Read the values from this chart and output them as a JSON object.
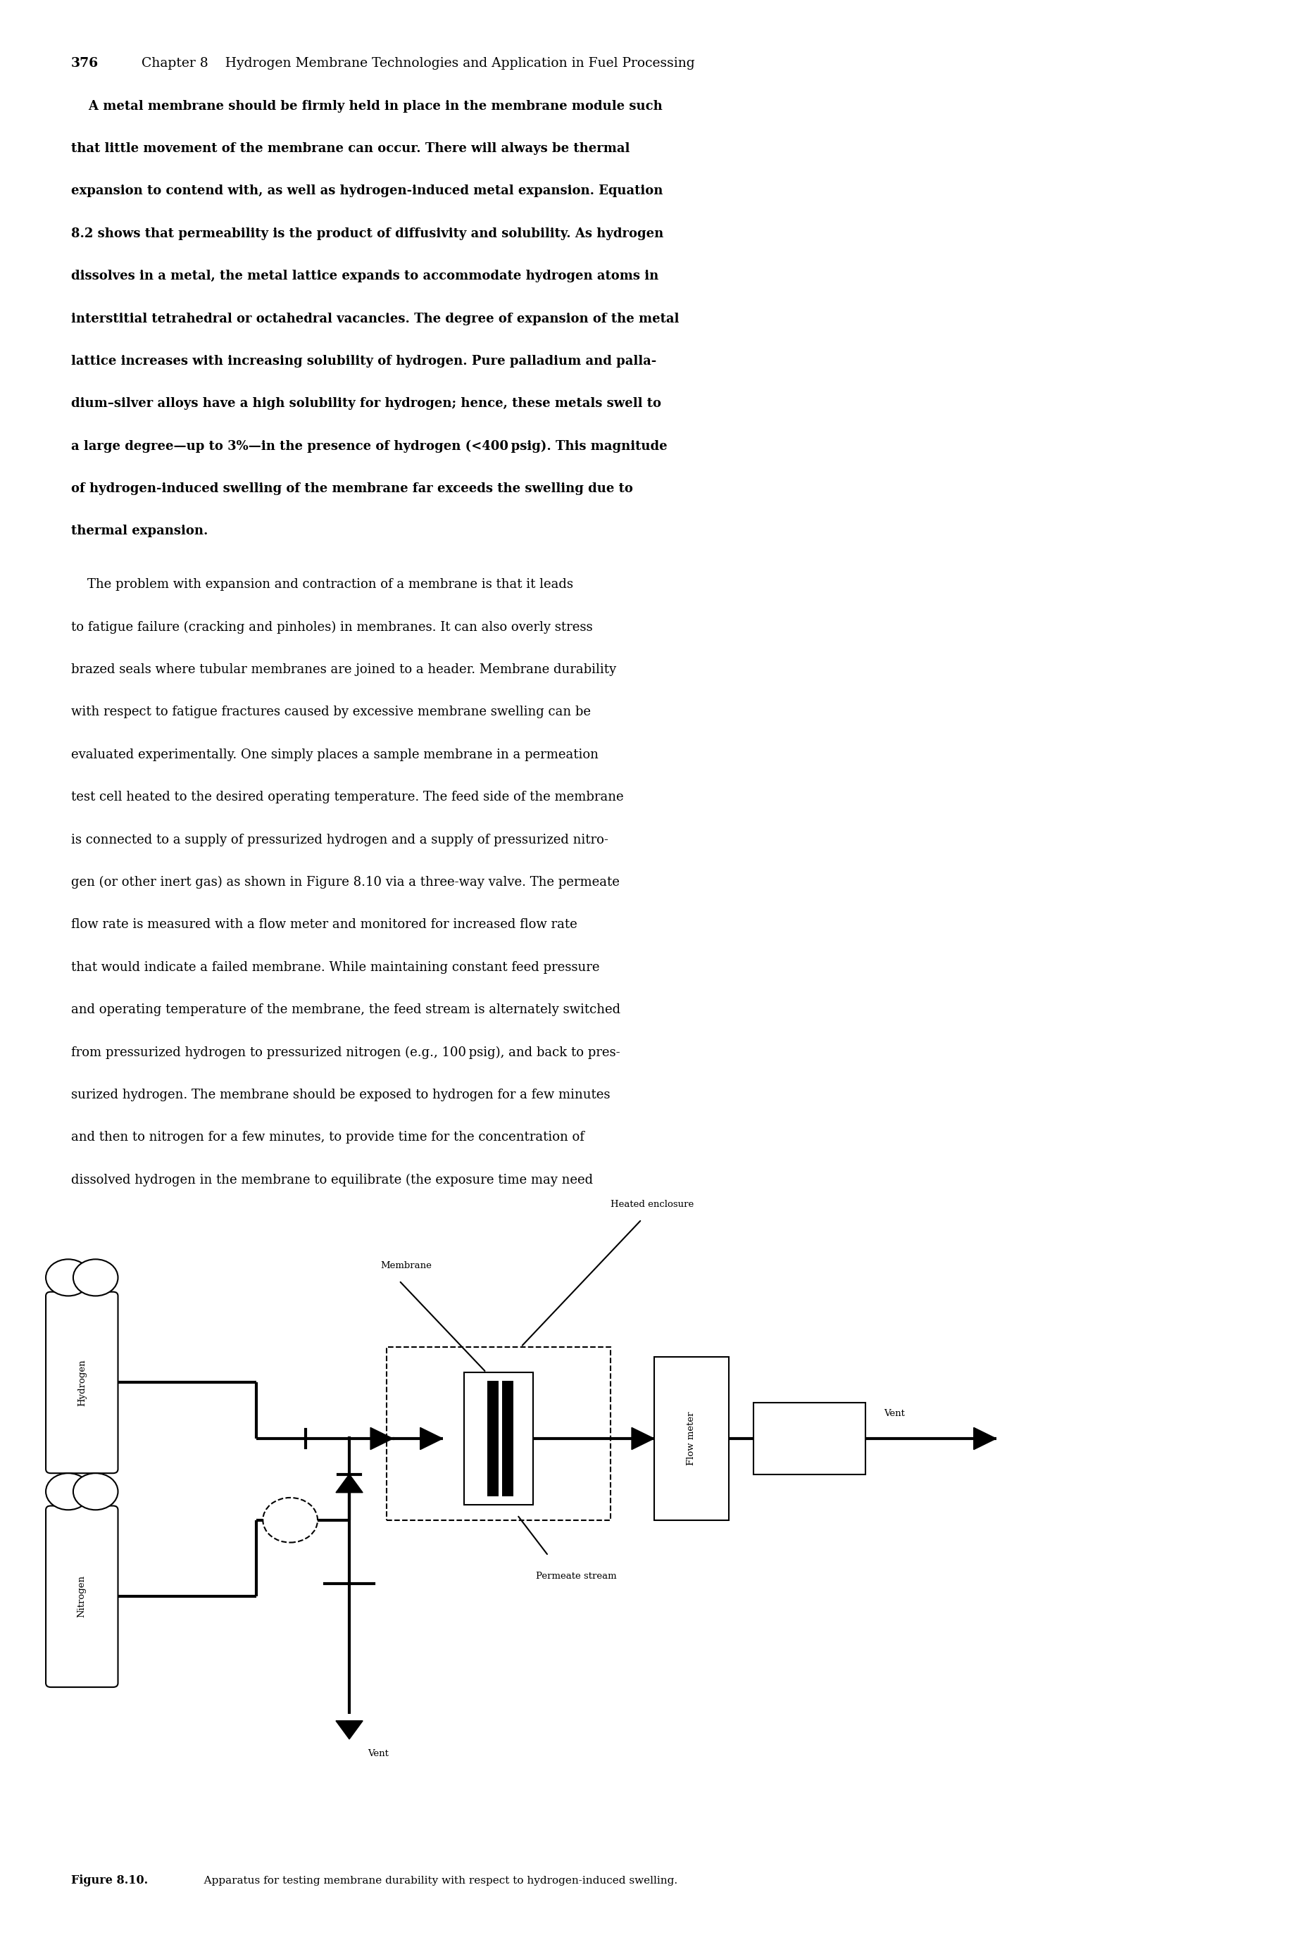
{
  "bg_color": "#ffffff",
  "text_color": "#000000",
  "header_num": "376",
  "header_rest": "Chapter 8    Hydrogen Membrane Technologies and Application in Fuel Processing",
  "para1": [
    "    A metal membrane should be firmly held in place in the membrane module such",
    "that little movement of the membrane can occur. There will always be thermal",
    "expansion to contend with, as well as hydrogen-induced metal expansion. Equation",
    "8.2 shows that permeability is the product of diffusivity and solubility. As hydrogen",
    "dissolves in a metal, the metal lattice expands to accommodate hydrogen atoms in",
    "interstitial tetrahedral or octahedral vacancies. The degree of expansion of the metal",
    "lattice increases with increasing solubility of hydrogen. Pure palladium and palla-",
    "dium–silver alloys have a high solubility for hydrogen; hence, these metals swell to",
    "a large degree—up to 3%—in the presence of hydrogen (<400 psig). This magnitude",
    "of hydrogen-induced swelling of the membrane far exceeds the swelling due to",
    "thermal expansion."
  ],
  "para2": [
    "    The problem with expansion and contraction of a membrane is that it leads",
    "to fatigue failure (cracking and pinholes) in membranes. It can also overly stress",
    "brazed seals where tubular membranes are joined to a header. Membrane durability",
    "with respect to fatigue fractures caused by excessive membrane swelling can be",
    "evaluated experimentally. One simply places a sample membrane in a permeation",
    "test cell heated to the desired operating temperature. The feed side of the membrane",
    "is connected to a supply of pressurized hydrogen and a supply of pressurized nitro-",
    "gen (or other inert gas) as shown in Figure 8.10 via a three-way valve. The permeate",
    "flow rate is measured with a flow meter and monitored for increased flow rate",
    "that would indicate a failed membrane. While maintaining constant feed pressure",
    "and operating temperature of the membrane, the feed stream is alternately switched",
    "from pressurized hydrogen to pressurized nitrogen (e.g., 100 psig), and back to pres-",
    "surized hydrogen. The membrane should be exposed to hydrogen for a few minutes",
    "and then to nitrogen for a few minutes, to provide time for the concentration of",
    "dissolved hydrogen in the membrane to equilibrate (the exposure time may need"
  ],
  "caption_bold": "Figure 8.10.",
  "caption_rest": "   Apparatus for testing membrane durability with respect to hydrogen-induced swelling.",
  "diag": {
    "hydrogen_label": "Hydrogen",
    "nitrogen_label": "Nitrogen",
    "heated_label": "Heated enclosure",
    "membrane_label": "Membrane",
    "flow_meter_label": "Flow meter",
    "vent_top_label": "Vent",
    "vent_bot_label": "Vent",
    "permeate_label": "Permeate stream"
  }
}
